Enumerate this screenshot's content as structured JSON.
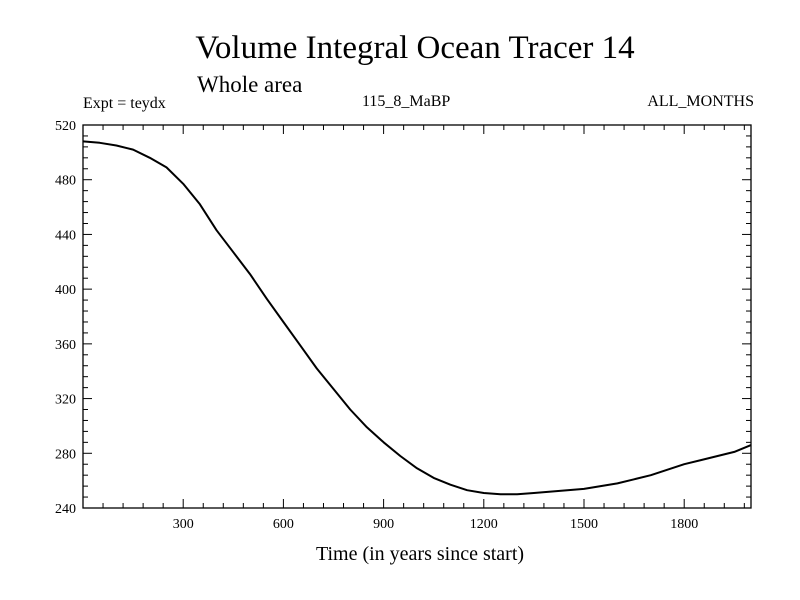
{
  "chart_data": {
    "type": "line",
    "title": "Volume Integral Ocean Tracer 14",
    "subtitle": "Whole area",
    "experiment": "Expt = teydx",
    "period": "115_8_MaBP",
    "months": "ALL_MONTHS",
    "xlabel": "Time (in years since start)",
    "ylabel": "",
    "xlim": [
      0,
      2000
    ],
    "ylim": [
      240,
      520
    ],
    "x_ticks": [
      300,
      600,
      900,
      1200,
      1500,
      1800
    ],
    "y_ticks": [
      240,
      280,
      320,
      360,
      400,
      440,
      480,
      520
    ],
    "grid": false,
    "series": [
      {
        "name": "Tracer 14",
        "x": [
          0,
          50,
          100,
          150,
          200,
          250,
          300,
          350,
          400,
          450,
          500,
          550,
          600,
          650,
          700,
          750,
          800,
          850,
          900,
          950,
          1000,
          1050,
          1100,
          1150,
          1200,
          1250,
          1300,
          1350,
          1400,
          1450,
          1500,
          1550,
          1600,
          1650,
          1700,
          1750,
          1800,
          1850,
          1900,
          1950,
          2000
        ],
        "values": [
          508,
          507,
          505,
          502,
          496,
          489,
          477,
          462,
          443,
          427,
          411,
          393,
          376,
          359,
          342,
          327,
          312,
          299,
          288,
          278,
          269,
          262,
          257,
          253,
          251,
          250,
          250,
          251,
          252,
          253,
          254,
          256,
          258,
          261,
          264,
          268,
          272,
          275,
          278,
          281,
          286
        ]
      }
    ]
  }
}
